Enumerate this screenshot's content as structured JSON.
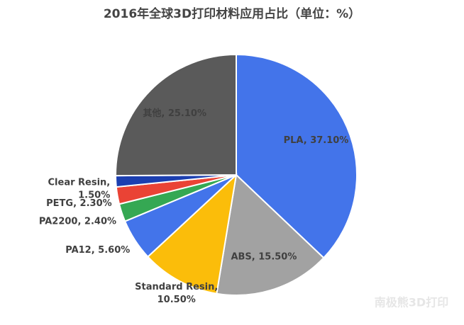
{
  "chart_data": {
    "type": "pie",
    "title": "2016年全球3D打印材料应用占比（单位：%）",
    "labels": [
      "PLA, 37.10%",
      "ABS, 15.50%",
      "Standard Resin, 10.50%",
      "PA12, 5.60%",
      "PA2200, 2.40%",
      "PETG, 2.30%",
      "Clear Resin, 1.50%",
      "其他, 25.10%"
    ],
    "values": [
      37.1,
      15.5,
      10.5,
      5.6,
      2.4,
      2.3,
      1.5,
      25.1
    ],
    "colors": [
      "#4374ea",
      "#a2a2a2",
      "#fbbd0a",
      "#4374ea",
      "#35a853",
      "#ea4335",
      "#1c3fb0",
      "#5a5a5a"
    ]
  },
  "watermark": "南极熊3D打印"
}
